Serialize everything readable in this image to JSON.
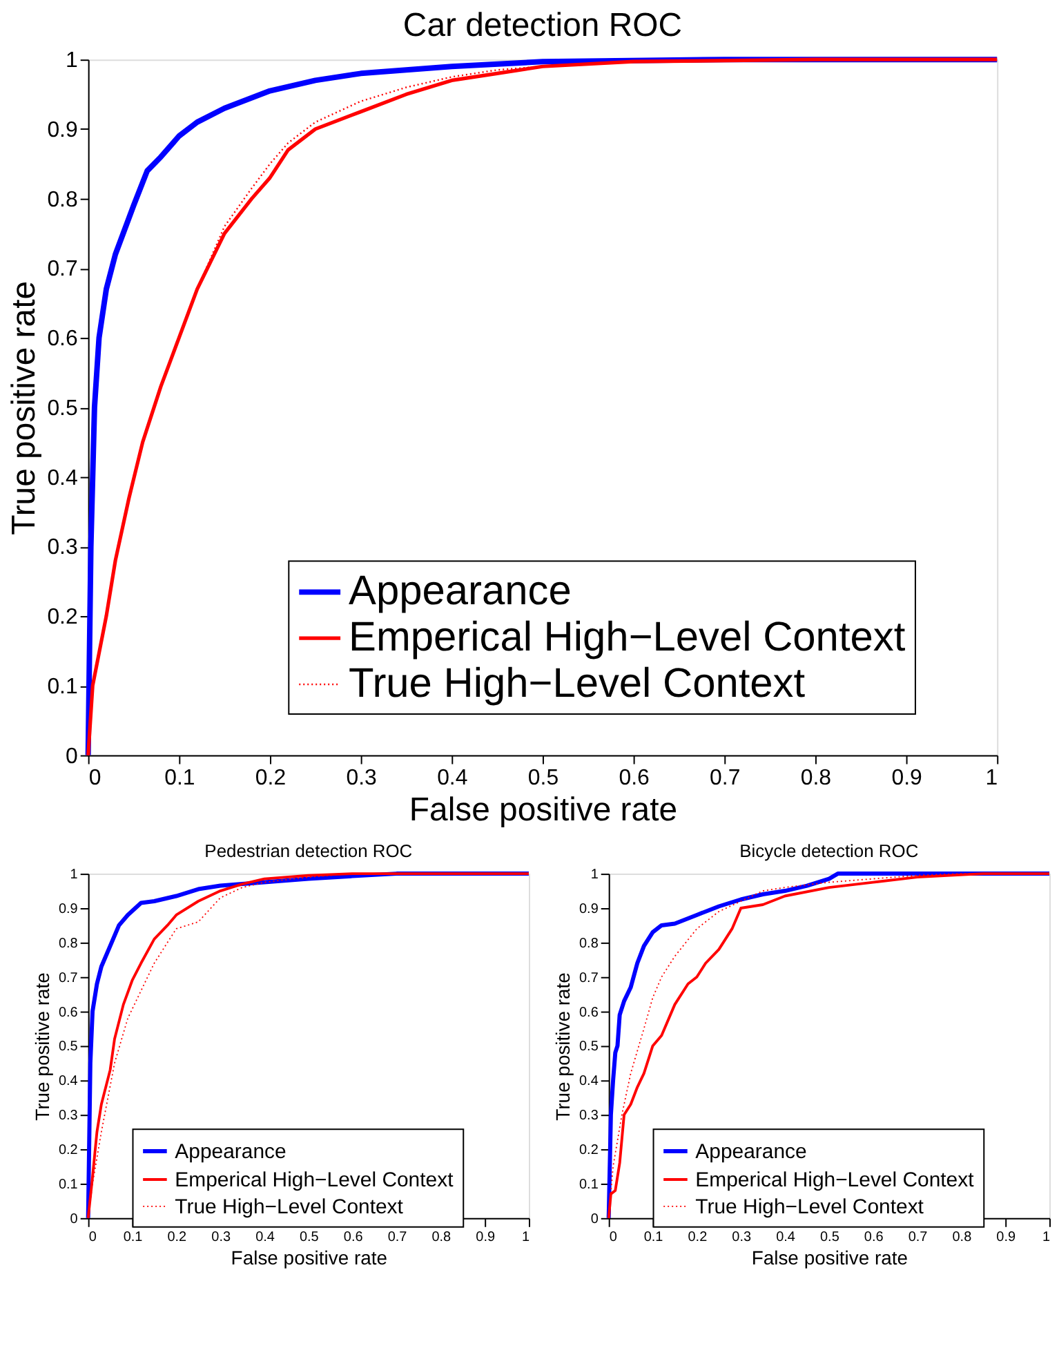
{
  "chart_data": [
    {
      "type": "line",
      "title": "Car detection ROC",
      "xlabel": "False positive rate",
      "ylabel": "True positive rate",
      "xlim": [
        0,
        1
      ],
      "ylim": [
        0,
        1
      ],
      "xticks": [
        0,
        0.1,
        0.2,
        0.3,
        0.4,
        0.5,
        0.6,
        0.7,
        0.8,
        0.9,
        1
      ],
      "yticks": [
        0,
        0.1,
        0.2,
        0.3,
        0.4,
        0.5,
        0.6,
        0.7,
        0.8,
        0.9,
        1
      ],
      "grid": false,
      "legend": "bottom",
      "marker": "none",
      "series": [
        {
          "name": "Appearance",
          "color": "#0000ff",
          "line_style": "solid",
          "x": [
            0,
            0.003,
            0.007,
            0.012,
            0.02,
            0.03,
            0.05,
            0.065,
            0.08,
            0.1,
            0.12,
            0.15,
            0.2,
            0.25,
            0.3,
            0.4,
            0.5,
            0.7,
            1
          ],
          "values": [
            0,
            0.3,
            0.5,
            0.6,
            0.67,
            0.72,
            0.79,
            0.84,
            0.86,
            0.89,
            0.91,
            0.93,
            0.955,
            0.97,
            0.98,
            0.99,
            0.997,
            1,
            1
          ]
        },
        {
          "name": "Emperical High−Level Context",
          "color": "#ff0000",
          "line_style": "solid",
          "x": [
            0,
            0.005,
            0.02,
            0.03,
            0.045,
            0.06,
            0.08,
            0.1,
            0.12,
            0.15,
            0.18,
            0.2,
            0.22,
            0.25,
            0.3,
            0.35,
            0.4,
            0.45,
            0.5,
            0.6,
            0.8,
            1
          ],
          "values": [
            0,
            0.1,
            0.2,
            0.28,
            0.37,
            0.45,
            0.53,
            0.6,
            0.67,
            0.75,
            0.8,
            0.83,
            0.87,
            0.9,
            0.925,
            0.95,
            0.97,
            0.98,
            0.99,
            0.997,
            1,
            1
          ]
        },
        {
          "name": "True High−Level Context",
          "color": "#ff0000",
          "line_style": "dotted",
          "x": [
            0,
            0.005,
            0.02,
            0.03,
            0.045,
            0.06,
            0.08,
            0.1,
            0.12,
            0.15,
            0.18,
            0.2,
            0.22,
            0.25,
            0.3,
            0.35,
            0.4,
            0.45,
            0.5,
            0.6,
            0.8,
            1
          ],
          "values": [
            0,
            0.1,
            0.2,
            0.28,
            0.37,
            0.45,
            0.53,
            0.6,
            0.67,
            0.76,
            0.815,
            0.85,
            0.88,
            0.91,
            0.94,
            0.96,
            0.975,
            0.985,
            0.99,
            0.997,
            1,
            1
          ]
        }
      ]
    },
    {
      "type": "line",
      "title": "Pedestrian detection ROC",
      "xlabel": "False positive rate",
      "ylabel": "True positive rate",
      "xlim": [
        0,
        1
      ],
      "ylim": [
        0,
        1
      ],
      "xticks": [
        0,
        0.1,
        0.2,
        0.3,
        0.4,
        0.5,
        0.6,
        0.7,
        0.8,
        0.9,
        1
      ],
      "yticks": [
        0,
        0.1,
        0.2,
        0.3,
        0.4,
        0.5,
        0.6,
        0.7,
        0.8,
        0.9,
        1
      ],
      "grid": false,
      "legend": "bottom",
      "marker": "none",
      "series": [
        {
          "name": "Appearance",
          "color": "#0000ff",
          "line_style": "solid",
          "x": [
            0,
            0.005,
            0.01,
            0.02,
            0.03,
            0.05,
            0.07,
            0.09,
            0.12,
            0.15,
            0.2,
            0.25,
            0.3,
            0.4,
            0.5,
            0.6,
            0.7,
            1
          ],
          "values": [
            0,
            0.45,
            0.6,
            0.68,
            0.73,
            0.79,
            0.85,
            0.88,
            0.915,
            0.92,
            0.935,
            0.955,
            0.965,
            0.975,
            0.985,
            0.993,
            1,
            1
          ]
        },
        {
          "name": "Emperical High−Level Context",
          "color": "#ff0000",
          "line_style": "solid",
          "x": [
            0,
            0.01,
            0.02,
            0.03,
            0.05,
            0.06,
            0.08,
            0.1,
            0.12,
            0.15,
            0.18,
            0.2,
            0.25,
            0.3,
            0.35,
            0.4,
            0.5,
            0.6,
            1
          ],
          "values": [
            0,
            0.12,
            0.25,
            0.33,
            0.43,
            0.52,
            0.62,
            0.69,
            0.74,
            0.81,
            0.85,
            0.88,
            0.92,
            0.95,
            0.97,
            0.985,
            0.995,
            1,
            1
          ]
        },
        {
          "name": "True High−Level Context",
          "color": "#ff0000",
          "line_style": "dotted",
          "x": [
            0,
            0.01,
            0.03,
            0.06,
            0.09,
            0.12,
            0.15,
            0.18,
            0.2,
            0.25,
            0.3,
            0.35,
            0.4,
            0.5,
            0.6,
            1
          ],
          "values": [
            0,
            0.1,
            0.25,
            0.45,
            0.58,
            0.66,
            0.74,
            0.8,
            0.84,
            0.86,
            0.93,
            0.96,
            0.975,
            0.99,
            1,
            1
          ]
        }
      ]
    },
    {
      "type": "line",
      "title": "Bicycle detection ROC",
      "xlabel": "False positive rate",
      "ylabel": "True positive rate",
      "xlim": [
        0,
        1
      ],
      "ylim": [
        0,
        1
      ],
      "xticks": [
        0,
        0.1,
        0.2,
        0.3,
        0.4,
        0.5,
        0.6,
        0.7,
        0.8,
        0.9,
        1
      ],
      "yticks": [
        0,
        0.1,
        0.2,
        0.3,
        0.4,
        0.5,
        0.6,
        0.7,
        0.8,
        0.9,
        1
      ],
      "grid": false,
      "legend": "bottom",
      "marker": "none",
      "series": [
        {
          "name": "Appearance",
          "color": "#0000ff",
          "line_style": "solid",
          "x": [
            0,
            0.005,
            0.01,
            0.015,
            0.02,
            0.025,
            0.035,
            0.05,
            0.065,
            0.08,
            0.1,
            0.12,
            0.15,
            0.2,
            0.25,
            0.3,
            0.35,
            0.4,
            0.45,
            0.5,
            0.52,
            1
          ],
          "values": [
            0,
            0.3,
            0.4,
            0.48,
            0.5,
            0.59,
            0.63,
            0.67,
            0.74,
            0.79,
            0.83,
            0.85,
            0.855,
            0.88,
            0.905,
            0.925,
            0.94,
            0.95,
            0.965,
            0.985,
            1,
            1
          ]
        },
        {
          "name": "Emperical High−Level Context",
          "color": "#ff0000",
          "line_style": "solid",
          "x": [
            0,
            0.005,
            0.015,
            0.025,
            0.035,
            0.05,
            0.065,
            0.08,
            0.1,
            0.12,
            0.15,
            0.18,
            0.2,
            0.22,
            0.25,
            0.28,
            0.3,
            0.35,
            0.4,
            0.5,
            0.6,
            0.7,
            0.85,
            1
          ],
          "values": [
            0,
            0.07,
            0.08,
            0.16,
            0.3,
            0.33,
            0.38,
            0.42,
            0.5,
            0.53,
            0.62,
            0.68,
            0.7,
            0.74,
            0.78,
            0.84,
            0.9,
            0.91,
            0.935,
            0.96,
            0.975,
            0.99,
            1,
            1
          ]
        },
        {
          "name": "True High−Level Context",
          "color": "#ff0000",
          "line_style": "dotted",
          "x": [
            0,
            0.01,
            0.03,
            0.05,
            0.08,
            0.1,
            0.12,
            0.15,
            0.2,
            0.25,
            0.3,
            0.35,
            0.4,
            0.5,
            0.6,
            0.7,
            0.8,
            1
          ],
          "values": [
            0,
            0.15,
            0.3,
            0.42,
            0.55,
            0.64,
            0.7,
            0.76,
            0.84,
            0.89,
            0.92,
            0.95,
            0.96,
            0.975,
            0.985,
            0.995,
            1,
            1
          ]
        }
      ]
    }
  ]
}
